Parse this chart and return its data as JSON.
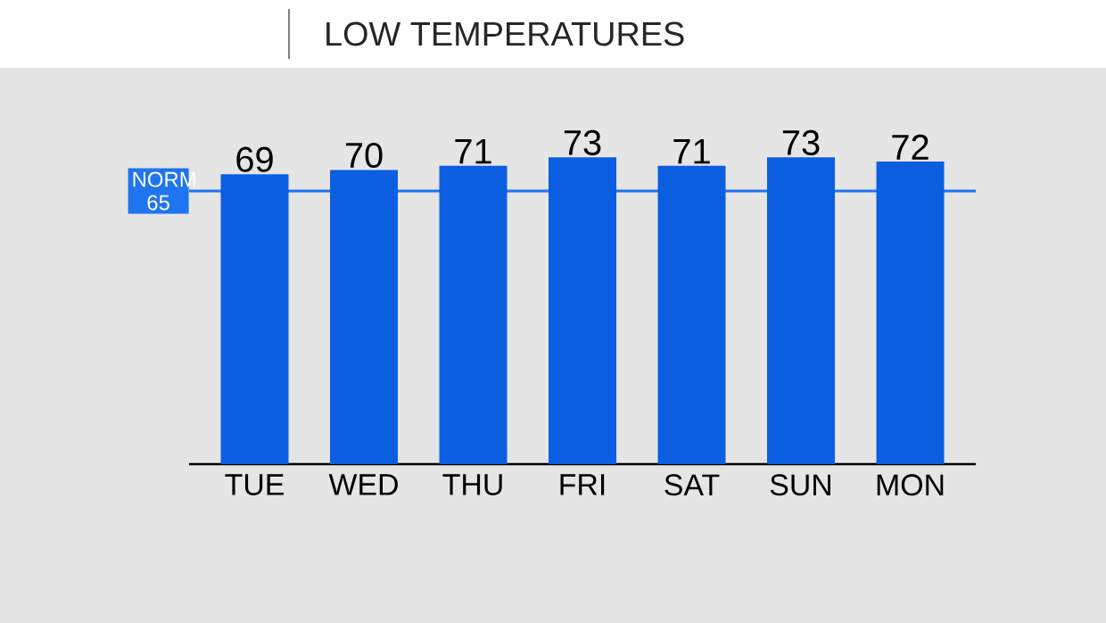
{
  "chart_data": {
    "type": "bar",
    "title": "LOW TEMPERATURES",
    "categories": [
      "TUE",
      "WED",
      "THU",
      "FRI",
      "SAT",
      "SUN",
      "MON"
    ],
    "values": [
      69,
      70,
      71,
      73,
      71,
      73,
      72
    ],
    "color": "#0b5ee0",
    "data_labels": true,
    "ref_lines": [
      {
        "axis": "y",
        "value": 65,
        "label": "NORM 65",
        "color": "#1f74f0"
      }
    ]
  }
}
